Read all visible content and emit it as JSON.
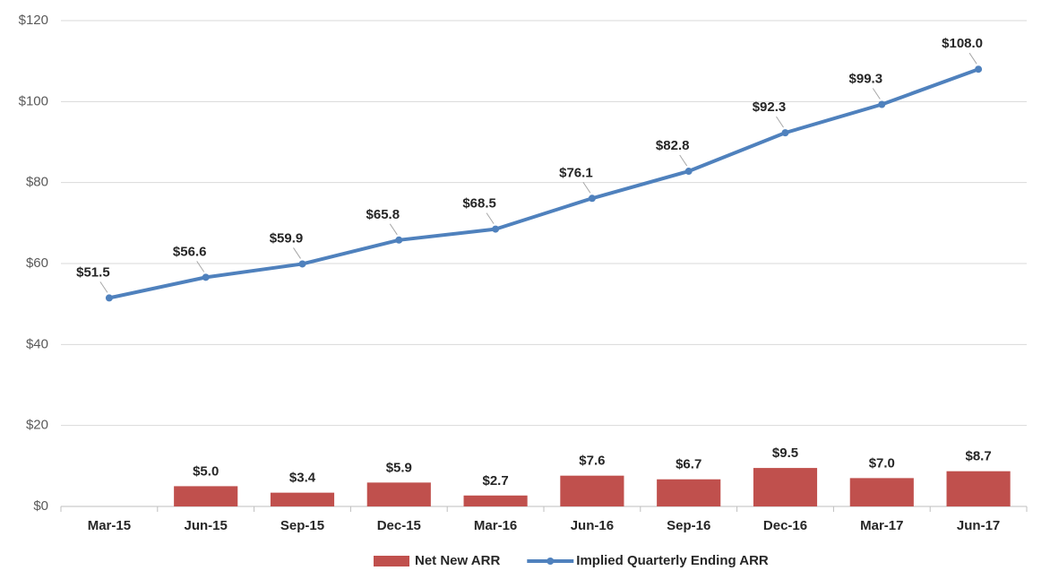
{
  "chart_data": {
    "type": "combo",
    "categories": [
      "Mar-15",
      "Jun-15",
      "Sep-15",
      "Dec-15",
      "Mar-16",
      "Jun-16",
      "Sep-16",
      "Dec-16",
      "Mar-17",
      "Jun-17"
    ],
    "series": [
      {
        "name": "Net New ARR",
        "type": "bar",
        "color": "#c0504d",
        "values": [
          null,
          5.0,
          3.4,
          5.9,
          2.7,
          7.6,
          6.7,
          9.5,
          7.0,
          8.7
        ],
        "value_labels": [
          null,
          "$5.0",
          "$3.4",
          "$5.9",
          "$2.7",
          "$7.6",
          "$6.7",
          "$9.5",
          "$7.0",
          "$8.7"
        ]
      },
      {
        "name": "Implied Quarterly Ending ARR",
        "type": "line",
        "color": "#4f81bd",
        "values": [
          51.5,
          56.6,
          59.9,
          65.8,
          68.5,
          76.1,
          82.8,
          92.3,
          99.3,
          108.0
        ],
        "value_labels": [
          "$51.5",
          "$56.6",
          "$59.9",
          "$65.8",
          "$68.5",
          "$76.1",
          "$82.8",
          "$92.3",
          "$99.3",
          "$108.0"
        ]
      }
    ],
    "ylim": [
      0,
      120
    ],
    "yticks": [
      {
        "value": 0,
        "label": "$0"
      },
      {
        "value": 20,
        "label": "$20"
      },
      {
        "value": 40,
        "label": "$40"
      },
      {
        "value": 60,
        "label": "$60"
      },
      {
        "value": 80,
        "label": "$80"
      },
      {
        "value": 100,
        "label": "$100"
      },
      {
        "value": 120,
        "label": "$120"
      }
    ],
    "grid": true,
    "legend": "bottom"
  }
}
